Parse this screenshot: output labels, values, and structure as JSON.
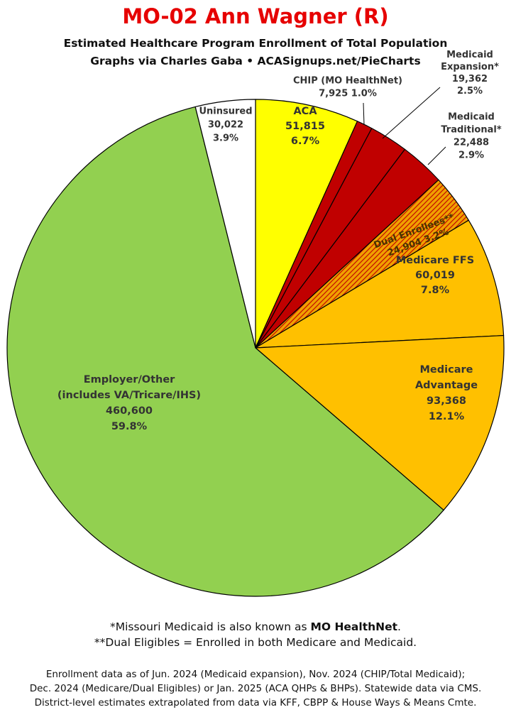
{
  "header": {
    "title": "MO-02 Ann Wagner (R)",
    "subtitle_line1": "Estimated Healthcare Program Enrollment of Total Population",
    "subtitle_line2": "Graphs via Charles Gaba   •   ACASignups.net/PieCharts"
  },
  "notes": {
    "note1_prefix": "*Missouri Medicaid is also known as ",
    "note1_bold": "MO HealthNet",
    "note1_suffix": ".",
    "note2": "**Dual Eligibles = Enrolled in both Medicare and Medicaid."
  },
  "footer": {
    "line1": "Enrollment data as of Jun. 2024 (Medicaid expansion), Nov. 2024 (CHIP/Total Medicaid);",
    "line2": "Dec. 2024 (Medicare/Dual Eligibles) or Jan. 2025 (ACA QHPs & BHPs). Statewide data via CMS.",
    "line3": "District-level estimates extrapolated from data via KFF, CBPP & House Ways & Means Cmte."
  },
  "chart_data": {
    "type": "pie",
    "title": "MO-02 Ann Wagner (R)",
    "subtitle": "Estimated Healthcare Program Enrollment of Total Population",
    "start": "12 o'clock",
    "direction": "clockwise",
    "slices": [
      {
        "label": "ACA",
        "value": 51815,
        "percent": "6.7%",
        "color": "#ffff00",
        "pattern": "solid",
        "label_lines": [
          "ACA",
          "51,815",
          "6.7%"
        ]
      },
      {
        "label": "CHIP (MO HealthNet)",
        "value": 7925,
        "percent": "1.0%",
        "color": "#c00000",
        "pattern": "solid",
        "label_lines": [
          "CHIP (MO HealthNet)",
          "7,925 1.0%"
        ]
      },
      {
        "label": "Medicaid Expansion*",
        "value": 19362,
        "percent": "2.5%",
        "color": "#c00000",
        "pattern": "solid",
        "label_lines": [
          "Medicaid",
          "Expansion*",
          "19,362",
          "2.5%"
        ]
      },
      {
        "label": "Medicaid Traditional*",
        "value": 22488,
        "percent": "2.9%",
        "color": "#c00000",
        "pattern": "solid",
        "label_lines": [
          "Medicaid",
          "Traditional*",
          "22,488",
          "2.9%"
        ]
      },
      {
        "label": "Dual Enrollees**",
        "value": 24904,
        "percent": "3.2%",
        "color": "#f0a000",
        "pattern": "hatched",
        "label_lines": [
          "Dual Enrollees**",
          "24,904 3.2%"
        ]
      },
      {
        "label": "Medicare FFS",
        "value": 60019,
        "percent": "7.8%",
        "color": "#ffc000",
        "pattern": "solid",
        "label_lines": [
          "Medicare FFS",
          "60,019",
          "7.8%"
        ]
      },
      {
        "label": "Medicare Advantage",
        "value": 93368,
        "percent": "12.1%",
        "color": "#ffc000",
        "pattern": "solid",
        "label_lines": [
          "Medicare",
          "Advantage",
          "93,368",
          "12.1%"
        ]
      },
      {
        "label": "Employer/Other (includes VA/Tricare/IHS)",
        "value": 460600,
        "percent": "59.8%",
        "color": "#92d050",
        "pattern": "solid",
        "label_lines": [
          "Employer/Other",
          "(includes VA/Tricare/IHS)",
          "460,600",
          "59.8%"
        ]
      },
      {
        "label": "Uninsured",
        "value": 30022,
        "percent": "3.9%",
        "color": "#ffffff",
        "pattern": "solid",
        "label_lines": [
          "Uninsured",
          "30,022",
          "3.9%"
        ]
      }
    ]
  }
}
